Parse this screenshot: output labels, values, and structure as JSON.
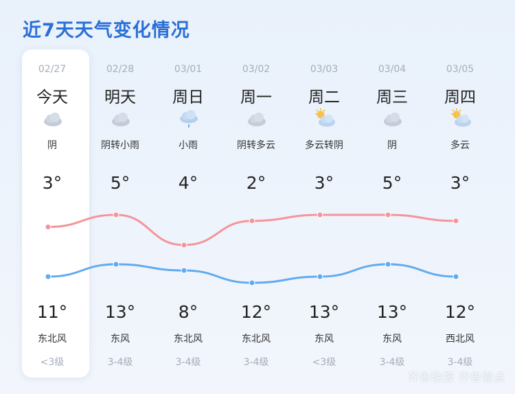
{
  "title": "近7天天气变化情况",
  "watermark": "齐鲁晚报 齐鲁壹点",
  "colors": {
    "title": "#2a6fd6",
    "high_line": "#f4959b",
    "low_line": "#5fabf0"
  },
  "days": [
    {
      "date": "02/27",
      "name": "今天",
      "icon": "cloudy-icon",
      "cond": "阴",
      "high": "3°",
      "low": "11°",
      "wind": "东北风",
      "level": "<3级"
    },
    {
      "date": "02/28",
      "name": "明天",
      "icon": "cloudy-icon",
      "cond": "阴转小雨",
      "high": "5°",
      "low": "13°",
      "wind": "东风",
      "level": "3-4级"
    },
    {
      "date": "03/01",
      "name": "周日",
      "icon": "light-rain-icon",
      "cond": "小雨",
      "high": "4°",
      "low": "8°",
      "wind": "东北风",
      "level": "3-4级"
    },
    {
      "date": "03/02",
      "name": "周一",
      "icon": "cloudy-icon",
      "cond": "阴转多云",
      "high": "2°",
      "low": "12°",
      "wind": "东北风",
      "level": "3-4级"
    },
    {
      "date": "03/03",
      "name": "周二",
      "icon": "partly-cloudy-icon",
      "cond": "多云转阴",
      "high": "3°",
      "low": "13°",
      "wind": "东风",
      "level": "<3级"
    },
    {
      "date": "03/04",
      "name": "周三",
      "icon": "cloudy-icon",
      "cond": "阴",
      "high": "5°",
      "low": "13°",
      "wind": "东风",
      "level": "3-4级"
    },
    {
      "date": "03/05",
      "name": "周四",
      "icon": "partly-cloudy-icon",
      "cond": "多云",
      "high": "3°",
      "low": "12°",
      "wind": "西北风",
      "level": "3-4级"
    }
  ]
}
